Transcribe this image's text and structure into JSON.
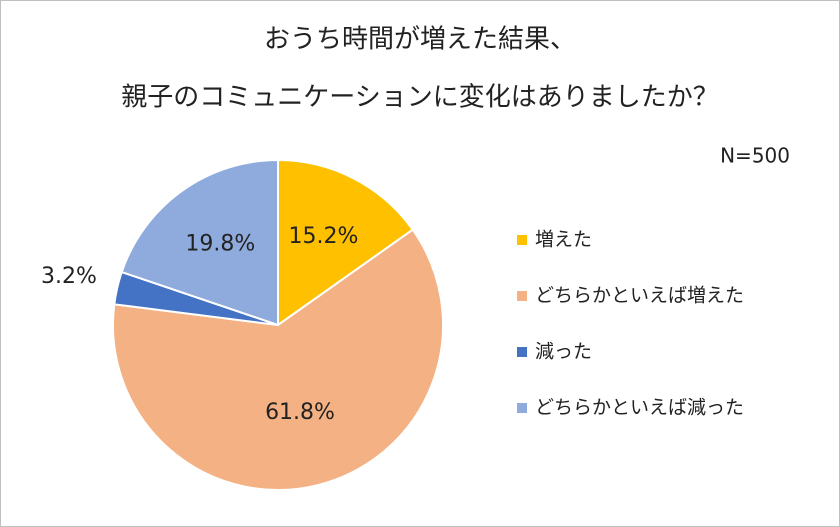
{
  "chart_data": {
    "type": "pie",
    "title": [
      "おうち時間が増えた結果、",
      "親子のコミュニケーションに変化はありましたか？"
    ],
    "annotation": "N=500",
    "categories": [
      "増えた",
      "どちらかといえば増えた",
      "減った",
      "どちらかといえば減った"
    ],
    "values": [
      15.2,
      61.8,
      3.2,
      19.8
    ],
    "value_labels": [
      "15.2%",
      "61.8%",
      "3.2%",
      "19.8%"
    ],
    "colors": [
      "#ffc000",
      "#f4b183",
      "#4472c4",
      "#8faadc"
    ],
    "legend": "right"
  }
}
